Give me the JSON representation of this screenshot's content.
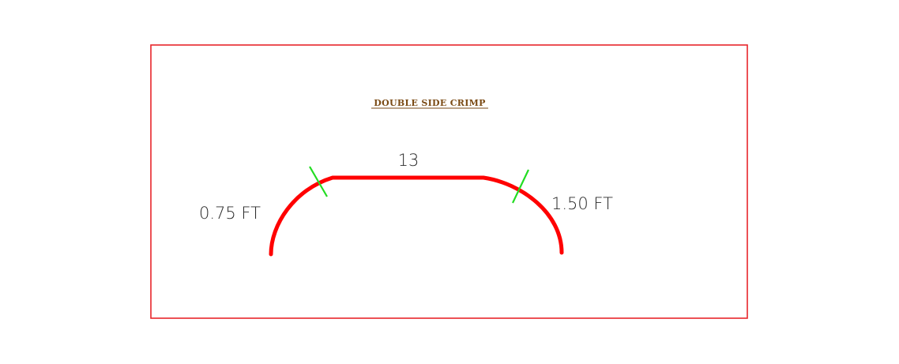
{
  "diagram": {
    "title": "DOUBLE SIDE CRIMP",
    "top_length": "13",
    "left_dimension": "0.75 FT",
    "right_dimension": "1.50 FT"
  },
  "colors": {
    "frame": "#e8262b",
    "profile": "#ff0000",
    "tick": "#22dd22",
    "title": "#7a4a14",
    "text": "#2a2a2a"
  }
}
